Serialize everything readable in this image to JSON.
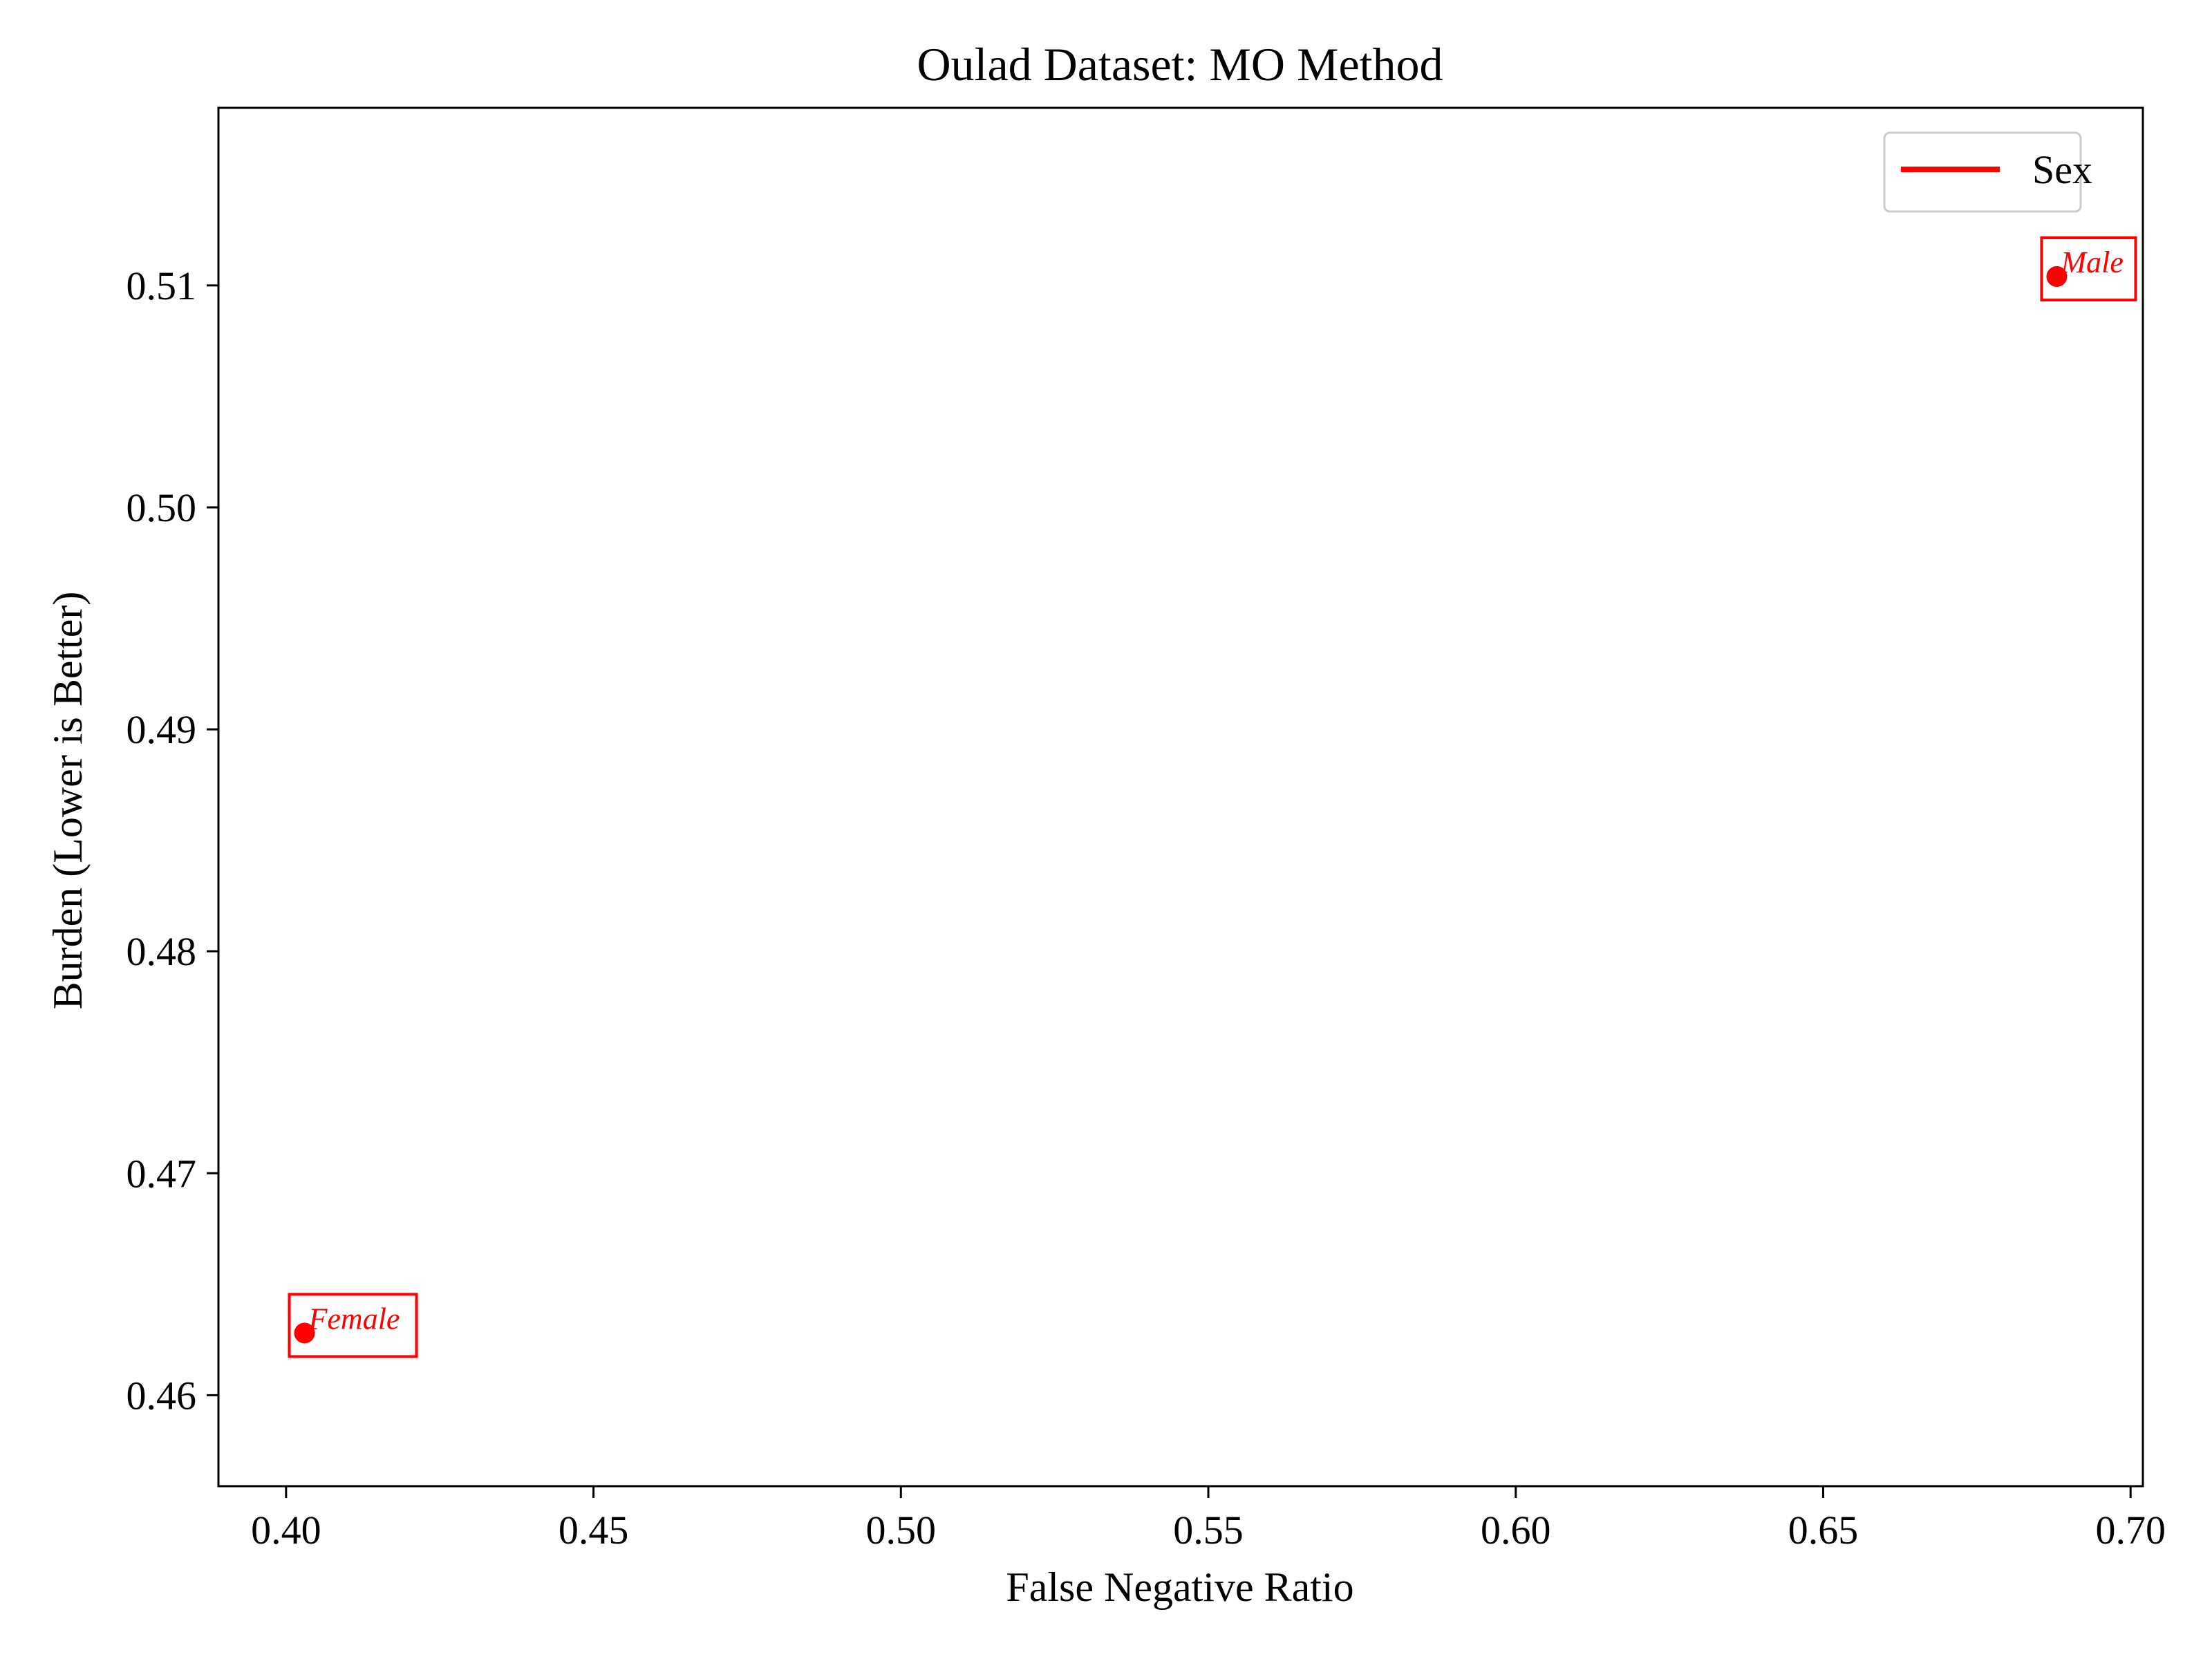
{
  "chart_data": {
    "type": "scatter",
    "title": "Oulad Dataset: MO Method",
    "xlabel": "False Negative Ratio",
    "ylabel": "Burden (Lower is Better)",
    "xlim": [
      0.389,
      0.702
    ],
    "ylim": [
      0.4559,
      0.518
    ],
    "xticks": [
      0.4,
      0.45,
      0.5,
      0.55,
      0.6,
      0.65,
      0.7
    ],
    "yticks": [
      0.46,
      0.47,
      0.48,
      0.49,
      0.5,
      0.51
    ],
    "xtick_labels": [
      "0.40",
      "0.45",
      "0.50",
      "0.55",
      "0.60",
      "0.65",
      "0.70"
    ],
    "ytick_labels": [
      "0.46",
      "0.47",
      "0.48",
      "0.49",
      "0.50",
      "0.51"
    ],
    "grid": false,
    "legend_position": "top-right",
    "series": [
      {
        "name": "Sex",
        "color": "#ff0000",
        "points": [
          {
            "x": 0.403,
            "y": 0.4628,
            "label": "Female"
          },
          {
            "x": 0.688,
            "y": 0.5104,
            "label": "Male"
          }
        ]
      }
    ]
  }
}
